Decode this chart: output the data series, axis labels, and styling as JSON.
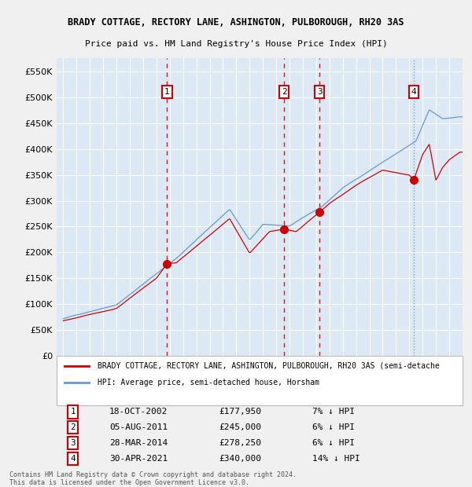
{
  "title_line1": "BRADY COTTAGE, RECTORY LANE, ASHINGTON, PULBOROUGH, RH20 3AS",
  "title_line2": "Price paid vs. HM Land Registry's House Price Index (HPI)",
  "bg_color": "#dce9f5",
  "grid_color": "#ffffff",
  "red_line_color": "#cc0000",
  "blue_line_color": "#6699cc",
  "sales": [
    {
      "num": 1,
      "date_label": "18-OCT-2002",
      "price": 177950,
      "note": "7% ↓ HPI",
      "x_year": 2002.8
    },
    {
      "num": 2,
      "date_label": "05-AUG-2011",
      "price": 245000,
      "note": "6% ↓ HPI",
      "x_year": 2011.6
    },
    {
      "num": 3,
      "date_label": "28-MAR-2014",
      "price": 278250,
      "note": "6% ↓ HPI",
      "x_year": 2014.25
    },
    {
      "num": 4,
      "date_label": "30-APR-2021",
      "price": 340000,
      "note": "14% ↓ HPI",
      "x_year": 2021.33
    }
  ],
  "vline_colors": [
    "#cc0000",
    "#cc0000",
    "#cc0000",
    "#6699cc"
  ],
  "ylim": [
    0,
    575000
  ],
  "yticks": [
    0,
    50000,
    100000,
    150000,
    200000,
    250000,
    300000,
    350000,
    400000,
    450000,
    500000,
    550000
  ],
  "xlim_start": 1994.5,
  "xlim_end": 2025.0,
  "legend_line1": "BRADY COTTAGE, RECTORY LANE, ASHINGTON, PULBOROUGH, RH20 3AS (semi-detache",
  "legend_line2": "HPI: Average price, semi-detached house, Horsham",
  "footer": "Contains HM Land Registry data © Crown copyright and database right 2024.\nThis data is licensed under the Open Government Licence v3.0."
}
